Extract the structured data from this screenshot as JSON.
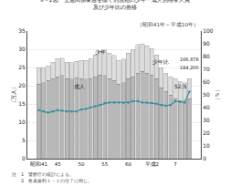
{
  "chart_data": {
    "type": "bar",
    "stacked": true,
    "title": [
      "II－2図　交通関係業過を除く刑法犯の少年・成人別検挙人員",
      "及び少年比の推移"
    ],
    "subtitle": "（昭和41年～平成10年）",
    "categories": [
      "昭和41",
      null,
      null,
      null,
      "45",
      null,
      null,
      null,
      null,
      "50",
      null,
      null,
      null,
      null,
      "55",
      null,
      null,
      null,
      null,
      "60",
      null,
      null,
      null,
      null,
      "平成2",
      null,
      null,
      null,
      null,
      "7",
      null,
      null,
      null
    ],
    "series": [
      {
        "name": "成人",
        "type": "bar",
        "color": "#b8b8b8",
        "values": [
          20.5,
          20.8,
          21.5,
          22.0,
          22.5,
          22.8,
          22.0,
          21.8,
          22.2,
          22.0,
          21.8,
          22.0,
          22.5,
          23.0,
          22.8,
          22.0,
          21.5,
          20.5,
          20.8,
          22.0,
          22.5,
          23.5,
          24.0,
          23.5,
          23.0,
          22.0,
          19.5,
          18.5,
          17.5,
          16.5,
          16.0,
          15.8,
          16.5
        ]
      },
      {
        "name": "少年",
        "type": "bar",
        "color": "#dcdcdc",
        "values": [
          4.5,
          4.2,
          4.0,
          4.5,
          5.0,
          4.8,
          4.5,
          4.5,
          4.5,
          5.0,
          5.2,
          5.5,
          6.0,
          6.5,
          7.0,
          7.0,
          6.8,
          6.5,
          6.5,
          7.0,
          7.5,
          7.8,
          7.5,
          7.5,
          7.2,
          6.5,
          5.5,
          5.0,
          5.0,
          5.5,
          5.2,
          5.0,
          5.5
        ]
      },
      {
        "name": "少年比",
        "type": "line",
        "axis": "y2",
        "color": "#3a8fa0",
        "marker": "circle",
        "values": [
          38,
          37,
          36,
          37,
          38,
          37.5,
          37,
          37,
          37,
          38.5,
          39,
          40,
          41,
          42,
          43.5,
          44,
          44,
          44,
          43.5,
          44,
          45,
          45,
          44,
          44,
          43.5,
          43,
          42,
          41.5,
          42,
          45,
          44.5,
          44,
          52.5
        ]
      }
    ],
    "ylabel": "（万人）",
    "y2label": "（％）",
    "ylim": [
      0,
      35
    ],
    "yticks": [
      0,
      5,
      10,
      15,
      20,
      25,
      30,
      35
    ],
    "y2lim": [
      0,
      100
    ],
    "y2ticks": [
      0,
      10,
      20,
      30,
      40,
      50,
      60,
      70,
      80,
      90,
      100
    ],
    "grid": true,
    "annotations": [
      "166,878",
      "184,200",
      "52.5"
    ],
    "notes": [
      "注　1　警察庁の統計による。",
      "　　2　各表資料１－１の注７に同じ。"
    ]
  }
}
